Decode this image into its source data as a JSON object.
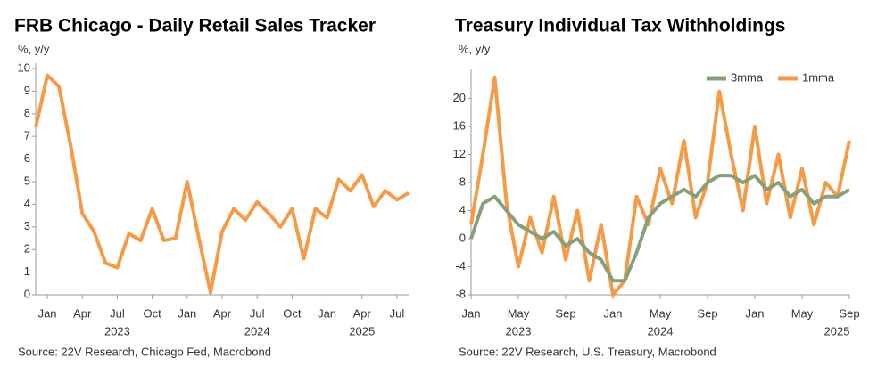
{
  "chart_data": [
    {
      "type": "line",
      "title": "FRB Chicago - Daily Retail Sales Tracker",
      "ylabel": "%, y/y",
      "source": "Source: 22V Research, Chicago Fed, Macrobond",
      "x": [
        "2022-12",
        "2023-01",
        "2023-02",
        "2023-03",
        "2023-04",
        "2023-05",
        "2023-06",
        "2023-07",
        "2023-08",
        "2023-09",
        "2023-10",
        "2023-11",
        "2023-12",
        "2024-01",
        "2024-02",
        "2024-03",
        "2024-04",
        "2024-05",
        "2024-06",
        "2024-07",
        "2024-08",
        "2024-09",
        "2024-10",
        "2024-11",
        "2024-12",
        "2025-01",
        "2025-02",
        "2025-03",
        "2025-04",
        "2025-05",
        "2025-06",
        "2025-07",
        "2025-08"
      ],
      "series": [
        {
          "name": "Daily Retail Sales Tracker",
          "color": "#f59a45",
          "values": [
            7.4,
            9.7,
            9.2,
            6.6,
            3.6,
            2.8,
            1.4,
            1.2,
            2.7,
            2.4,
            3.8,
            2.4,
            2.5,
            5.0,
            2.5,
            0.1,
            2.8,
            3.8,
            3.3,
            4.1,
            3.6,
            3.0,
            3.8,
            1.6,
            3.8,
            3.4,
            5.1,
            4.6,
            5.3,
            3.9,
            4.6,
            4.2,
            4.5
          ]
        }
      ],
      "xlim": [
        "2022-12",
        "2025-08"
      ],
      "xticks": [
        {
          "value": "2023-01",
          "label": "Jan"
        },
        {
          "value": "2023-04",
          "label": "Apr"
        },
        {
          "value": "2023-07",
          "label": "Jul"
        },
        {
          "value": "2023-10",
          "label": "Oct"
        },
        {
          "value": "2024-01",
          "label": "Jan"
        },
        {
          "value": "2024-04",
          "label": "Apr"
        },
        {
          "value": "2024-07",
          "label": "Jul"
        },
        {
          "value": "2024-10",
          "label": "Oct"
        },
        {
          "value": "2025-01",
          "label": "Jan"
        },
        {
          "value": "2025-04",
          "label": "Apr"
        },
        {
          "value": "2025-07",
          "label": "Jul"
        }
      ],
      "xyears": [
        {
          "value": "2023-07",
          "label": "2023"
        },
        {
          "value": "2024-07",
          "label": "2024"
        },
        {
          "value": "2025-04",
          "label": "2025"
        }
      ],
      "ylim": [
        0,
        10
      ],
      "yticks": [
        0,
        1,
        2,
        3,
        4,
        5,
        6,
        7,
        8,
        9,
        10
      ],
      "grid": false
    },
    {
      "type": "line",
      "title": "Treasury Individual Tax Withholdings",
      "ylabel": "%, y/y",
      "source": "Source: 22V Research, U.S. Treasury, Macrobond",
      "legend": "top-right",
      "x": [
        "2023-01",
        "2023-02",
        "2023-03",
        "2023-04",
        "2023-05",
        "2023-06",
        "2023-07",
        "2023-08",
        "2023-09",
        "2023-10",
        "2023-11",
        "2023-12",
        "2024-01",
        "2024-02",
        "2024-03",
        "2024-04",
        "2024-05",
        "2024-06",
        "2024-07",
        "2024-08",
        "2024-09",
        "2024-10",
        "2024-11",
        "2024-12",
        "2025-01",
        "2025-02",
        "2025-03",
        "2025-04",
        "2025-05",
        "2025-06",
        "2025-07",
        "2025-08",
        "2025-09"
      ],
      "series": [
        {
          "name": "1mma",
          "color": "#f59a45",
          "values": [
            2,
            12,
            23,
            5,
            -4,
            3,
            -2,
            6,
            -3,
            4,
            -6,
            2,
            -8,
            -6,
            6,
            2,
            10,
            5,
            14,
            3,
            8,
            21,
            12,
            4,
            16,
            5,
            12,
            3,
            10,
            2,
            8,
            6,
            14
          ]
        },
        {
          "name": "3mma",
          "color": "#86a07a",
          "values": [
            0,
            5,
            6,
            4,
            2,
            1,
            0,
            1,
            -1,
            0,
            -2,
            -3,
            -6,
            -6,
            -2,
            3,
            5,
            6,
            7,
            6,
            8,
            9,
            9,
            8,
            9,
            7,
            8,
            6,
            7,
            5,
            6,
            6,
            7
          ]
        }
      ],
      "xlim": [
        "2023-01",
        "2025-09"
      ],
      "xticks": [
        {
          "value": "2023-01",
          "label": "Jan"
        },
        {
          "value": "2023-05",
          "label": "May"
        },
        {
          "value": "2023-09",
          "label": "Sep"
        },
        {
          "value": "2024-01",
          "label": "Jan"
        },
        {
          "value": "2024-05",
          "label": "May"
        },
        {
          "value": "2024-09",
          "label": "Sep"
        },
        {
          "value": "2025-01",
          "label": "Jan"
        },
        {
          "value": "2025-05",
          "label": "May"
        },
        {
          "value": "2025-09",
          "label": "Sep"
        }
      ],
      "xyears": [
        {
          "value": "2023-05",
          "label": "2023"
        },
        {
          "value": "2024-05",
          "label": "2024"
        },
        {
          "value": "2025-09",
          "label": "2025"
        }
      ],
      "ylim": [
        -8,
        23.5
      ],
      "yticks": [
        -8,
        -4,
        0,
        4,
        8,
        12,
        16,
        20
      ],
      "grid": false
    }
  ]
}
